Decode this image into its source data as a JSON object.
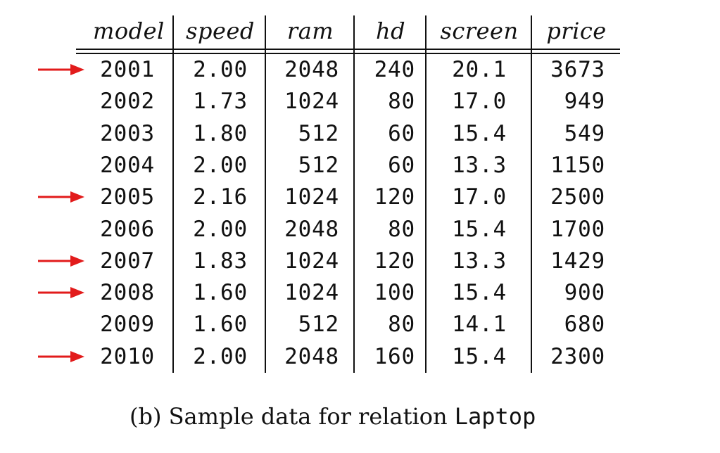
{
  "table": {
    "columns": [
      "model",
      "speed",
      "ram",
      "hd",
      "screen",
      "price"
    ],
    "rows": [
      [
        "2001",
        "2.00",
        "2048",
        "240",
        "20.1",
        "3673"
      ],
      [
        "2002",
        "1.73",
        "1024",
        "80",
        "17.0",
        "949"
      ],
      [
        "2003",
        "1.80",
        "512",
        "60",
        "15.4",
        "549"
      ],
      [
        "2004",
        "2.00",
        "512",
        "60",
        "13.3",
        "1150"
      ],
      [
        "2005",
        "2.16",
        "1024",
        "120",
        "17.0",
        "2500"
      ],
      [
        "2006",
        "2.00",
        "2048",
        "80",
        "15.4",
        "1700"
      ],
      [
        "2007",
        "1.83",
        "1024",
        "120",
        "13.3",
        "1429"
      ],
      [
        "2008",
        "1.60",
        "1024",
        "100",
        "15.4",
        "900"
      ],
      [
        "2009",
        "1.60",
        "512",
        "80",
        "14.1",
        "680"
      ],
      [
        "2010",
        "2.00",
        "2048",
        "160",
        "15.4",
        "2300"
      ]
    ],
    "marked_models": [
      "2001",
      "2005",
      "2007",
      "2008",
      "2010"
    ],
    "arrow_color": "#e21b1b"
  },
  "caption": {
    "prefix": "(b) Sample data for relation ",
    "relation": "Laptop"
  }
}
